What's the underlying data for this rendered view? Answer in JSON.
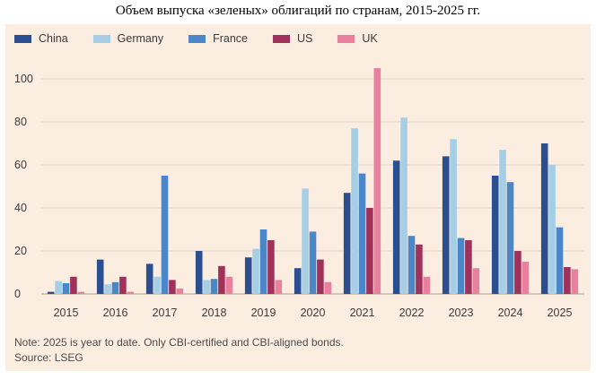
{
  "title": "Объем выпуска «зеленых» облигаций по странам, 2015-2025 гг.",
  "note": "Note: 2025 is year to date. Only CBI-certified and CBI-aligned bonds.",
  "source": "Source: LSEG",
  "colors": {
    "China": "#2a4e8f",
    "Germany": "#a6cfe6",
    "France": "#4b86c9",
    "US": "#a0315a",
    "UK": "#e8809e"
  },
  "chart_data": {
    "type": "bar",
    "categories": [
      "2015",
      "2016",
      "2017",
      "2018",
      "2019",
      "2020",
      "2021",
      "2022",
      "2023",
      "2024",
      "2025"
    ],
    "series": [
      {
        "name": "China",
        "values": [
          1,
          16,
          14,
          20,
          17,
          12,
          47,
          62,
          64,
          55,
          70
        ]
      },
      {
        "name": "Germany",
        "values": [
          6,
          4.5,
          8,
          6.5,
          21,
          49,
          77,
          82,
          72,
          67,
          60
        ]
      },
      {
        "name": "France",
        "values": [
          5,
          5.5,
          55,
          7,
          30,
          29,
          56,
          27,
          26,
          52,
          31
        ]
      },
      {
        "name": "US",
        "values": [
          8,
          8,
          6.5,
          13,
          25,
          16,
          40,
          23,
          25,
          20,
          12.5
        ]
      },
      {
        "name": "UK",
        "values": [
          1,
          1,
          2.5,
          8,
          6.5,
          5.5,
          105,
          8,
          12,
          15,
          11.5
        ]
      }
    ],
    "yticks": [
      0,
      20,
      40,
      60,
      80,
      100
    ],
    "ylim": [
      0,
      110
    ],
    "grid": true,
    "legend_position": "top-left"
  }
}
